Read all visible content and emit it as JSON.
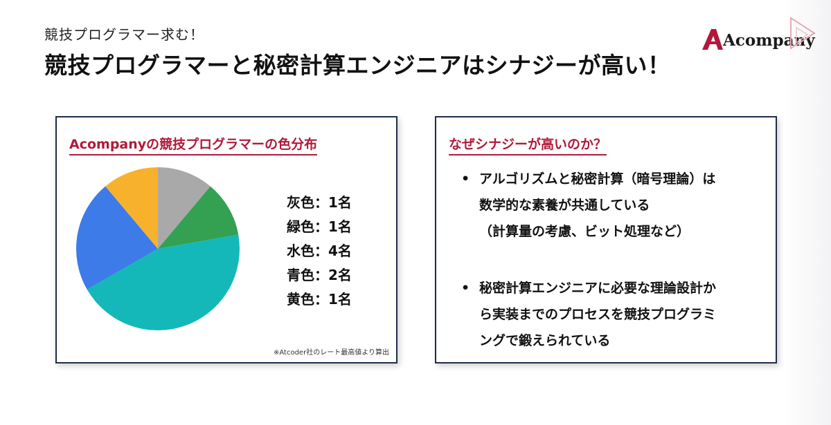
{
  "header": {
    "subtitle": "競技プログラマー求む！",
    "title": "競技プログラマーと秘密計算エンジニアはシナジーが高い！"
  },
  "logo": {
    "text": "Acompany",
    "brand_color": "#b0193a"
  },
  "left_card": {
    "heading": "Acompanyの競技プログラマーの色分布",
    "legend": [
      "灰色：1名",
      "緑色：1名",
      "水色：4名",
      "青色：2名",
      "黄色：1名"
    ],
    "footnote": "※Atcoder社のレート最高値より算出"
  },
  "chart_data": {
    "type": "pie",
    "categories": [
      "灰色",
      "緑色",
      "水色",
      "青色",
      "黄色"
    ],
    "values": [
      1,
      1,
      4,
      2,
      1
    ],
    "colors": [
      "#a9a9a9",
      "#34a052",
      "#14b8b8",
      "#3c7be8",
      "#f8b12d"
    ],
    "start": "12 o'clock, clockwise"
  },
  "right_card": {
    "heading": "なぜシナジーが高いのか？",
    "bullet_symbol": "•",
    "bullets": [
      {
        "lines": [
          "アルゴリズムと秘密計算（暗号理論）は",
          "数学的な素養が共通している",
          "（計算量の考慮、ビット処理など）"
        ]
      },
      {
        "lines": [
          "秘密計算エンジニアに必要な理論設計か",
          "ら実装までのプロセスを競技プログラミ",
          "ングで鍛えられている"
        ]
      }
    ]
  }
}
